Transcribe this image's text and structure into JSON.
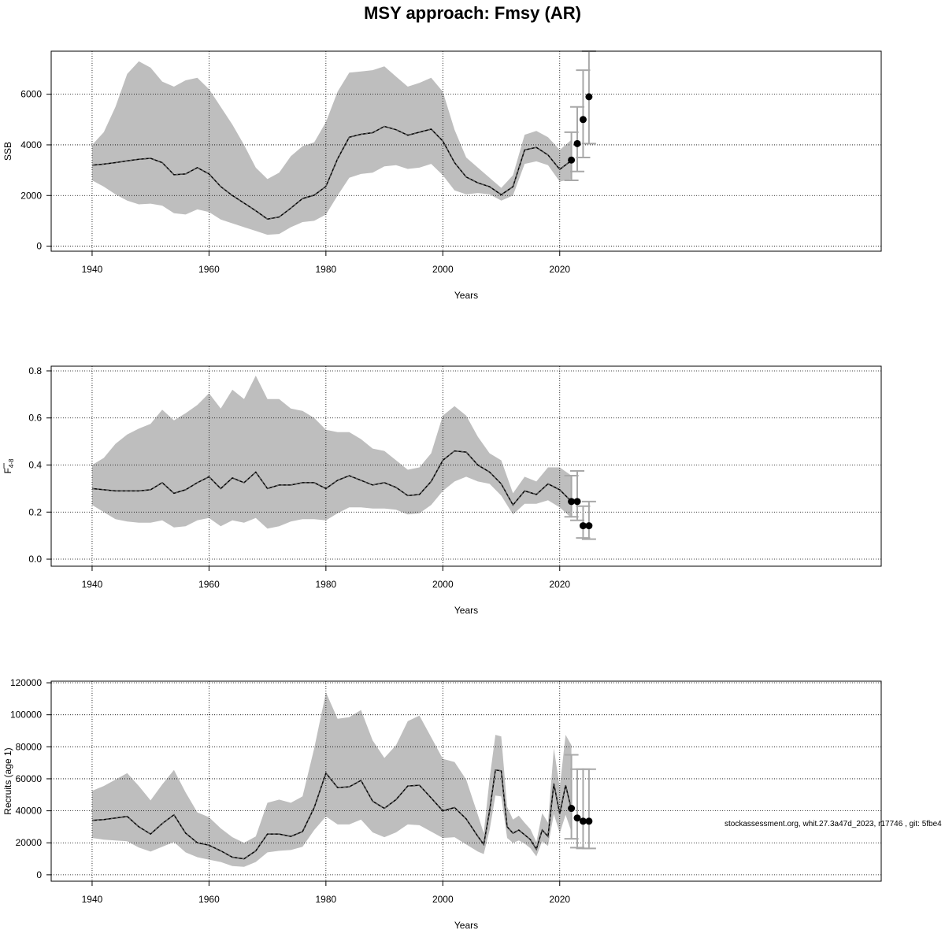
{
  "title": "MSY approach: Fmsy (AR)",
  "footer_text": "stockassessment.org, whit.27.3a47d_2023, r17746 , git: 5fbe4",
  "colors": {
    "band": "#bebebe",
    "line": "#000000",
    "errorbar": "#a8a8a8",
    "grid": "#000000"
  },
  "chart_data": [
    {
      "type": "line",
      "id": "ssb",
      "xlabel": "Years",
      "ylabel": "SSB",
      "xlim": [
        1933,
        2075
      ],
      "ylim": [
        -200,
        7700
      ],
      "xticks": [
        1940,
        1960,
        1980,
        2000,
        2020
      ],
      "yticks": [
        0,
        2000,
        4000,
        6000
      ],
      "ytick_labels": [
        "0",
        "2000",
        "4000",
        "6000"
      ],
      "grid": true,
      "years": [
        1940,
        1942,
        1944,
        1946,
        1948,
        1950,
        1952,
        1954,
        1956,
        1958,
        1960,
        1962,
        1964,
        1966,
        1968,
        1970,
        1972,
        1974,
        1976,
        1978,
        1980,
        1982,
        1984,
        1986,
        1988,
        1990,
        1992,
        1994,
        1996,
        1998,
        2000,
        2002,
        2004,
        2006,
        2008,
        2010,
        2012,
        2014,
        2016,
        2018,
        2020,
        2022
      ],
      "estimate": [
        3200,
        3240,
        3300,
        3370,
        3430,
        3470,
        3300,
        2820,
        2850,
        3100,
        2850,
        2350,
        2000,
        1700,
        1400,
        1070,
        1150,
        1500,
        1880,
        2010,
        2360,
        3450,
        4300,
        4420,
        4480,
        4730,
        4600,
        4380,
        4500,
        4620,
        4150,
        3300,
        2730,
        2500,
        2350,
        2030,
        2350,
        3800,
        3900,
        3600,
        3030,
        3380
      ],
      "lower": [
        2600,
        2350,
        2050,
        1800,
        1650,
        1680,
        1600,
        1300,
        1250,
        1450,
        1350,
        1050,
        900,
        750,
        600,
        450,
        480,
        750,
        950,
        1000,
        1250,
        2000,
        2700,
        2850,
        2900,
        3150,
        3200,
        3050,
        3100,
        3250,
        2800,
        2200,
        2050,
        2100,
        2050,
        1800,
        2000,
        3250,
        3350,
        3200,
        2550,
        2650
      ],
      "upper": [
        4000,
        4500,
        5500,
        6800,
        7300,
        7050,
        6500,
        6300,
        6550,
        6650,
        6200,
        5500,
        4800,
        4000,
        3100,
        2650,
        2900,
        3550,
        3950,
        4100,
        4900,
        6100,
        6850,
        6900,
        6950,
        7100,
        6700,
        6300,
        6450,
        6650,
        6100,
        4600,
        3500,
        3100,
        2700,
        2300,
        2800,
        4400,
        4550,
        4300,
        3800,
        4200
      ],
      "forecast": [
        {
          "year": 2022,
          "value": 3400,
          "lower": 2600,
          "upper": 4500
        },
        {
          "year": 2023,
          "value": 4050,
          "lower": 2950,
          "upper": 5500
        },
        {
          "year": 2024,
          "value": 5000,
          "lower": 3500,
          "upper": 6950
        },
        {
          "year": 2025,
          "value": 5900,
          "lower": 4050,
          "upper": 7700
        }
      ]
    },
    {
      "type": "line",
      "id": "fbar",
      "xlabel": "Years",
      "ylabel": "F",
      "ylabel_sub": "4-8",
      "xlim": [
        1933,
        2075
      ],
      "ylim": [
        -0.03,
        0.82
      ],
      "xticks": [
        1940,
        1960,
        1980,
        2000,
        2020
      ],
      "yticks": [
        0,
        0.2,
        0.4,
        0.6,
        0.8
      ],
      "ytick_labels": [
        "0.0",
        "0.2",
        "0.4",
        "0.6",
        "0.8"
      ],
      "grid": true,
      "years": [
        1940,
        1942,
        1944,
        1946,
        1948,
        1950,
        1952,
        1954,
        1956,
        1958,
        1960,
        1962,
        1964,
        1966,
        1968,
        1970,
        1972,
        1974,
        1976,
        1978,
        1980,
        1982,
        1984,
        1986,
        1988,
        1990,
        1992,
        1994,
        1996,
        1998,
        2000,
        2002,
        2004,
        2006,
        2008,
        2010,
        2012,
        2014,
        2016,
        2018,
        2020,
        2022
      ],
      "estimate": [
        0.3,
        0.295,
        0.29,
        0.29,
        0.29,
        0.295,
        0.325,
        0.28,
        0.295,
        0.325,
        0.35,
        0.3,
        0.345,
        0.325,
        0.37,
        0.3,
        0.315,
        0.315,
        0.325,
        0.325,
        0.3,
        0.335,
        0.355,
        0.335,
        0.315,
        0.325,
        0.305,
        0.27,
        0.275,
        0.33,
        0.42,
        0.46,
        0.455,
        0.4,
        0.37,
        0.32,
        0.23,
        0.29,
        0.275,
        0.32,
        0.295,
        0.245
      ],
      "lower": [
        0.23,
        0.2,
        0.17,
        0.16,
        0.155,
        0.155,
        0.165,
        0.135,
        0.14,
        0.165,
        0.175,
        0.14,
        0.165,
        0.155,
        0.175,
        0.13,
        0.14,
        0.16,
        0.17,
        0.17,
        0.165,
        0.195,
        0.22,
        0.22,
        0.215,
        0.215,
        0.21,
        0.19,
        0.195,
        0.23,
        0.29,
        0.33,
        0.35,
        0.33,
        0.32,
        0.27,
        0.19,
        0.235,
        0.235,
        0.25,
        0.22,
        0.175
      ],
      "upper": [
        0.4,
        0.43,
        0.49,
        0.53,
        0.555,
        0.575,
        0.635,
        0.59,
        0.62,
        0.655,
        0.705,
        0.64,
        0.72,
        0.68,
        0.78,
        0.68,
        0.68,
        0.64,
        0.63,
        0.6,
        0.55,
        0.54,
        0.54,
        0.51,
        0.47,
        0.46,
        0.42,
        0.38,
        0.39,
        0.45,
        0.61,
        0.65,
        0.61,
        0.52,
        0.45,
        0.42,
        0.28,
        0.35,
        0.33,
        0.39,
        0.39,
        0.355
      ],
      "forecast": [
        {
          "year": 2022,
          "value": 0.245,
          "lower": 0.18,
          "upper": 0.355
        },
        {
          "year": 2023,
          "value": 0.245,
          "lower": 0.165,
          "upper": 0.375
        },
        {
          "year": 2024,
          "value": 0.142,
          "lower": 0.09,
          "upper": 0.225
        },
        {
          "year": 2025,
          "value": 0.142,
          "lower": 0.085,
          "upper": 0.245
        }
      ]
    },
    {
      "type": "line",
      "id": "recruits",
      "xlabel": "Years",
      "ylabel": "Recruits (age 1)",
      "xlim": [
        1933,
        2075
      ],
      "ylim": [
        -4000,
        121000
      ],
      "xticks": [
        1940,
        1960,
        1980,
        2000,
        2020
      ],
      "yticks": [
        0,
        20000,
        40000,
        60000,
        80000,
        100000,
        120000
      ],
      "ytick_labels": [
        "0",
        "20000",
        "40000",
        "60000",
        "80000",
        "100000",
        "120000"
      ],
      "grid": true,
      "years": [
        1940,
        1942,
        1944,
        1946,
        1948,
        1950,
        1952,
        1954,
        1956,
        1958,
        1960,
        1962,
        1964,
        1966,
        1968,
        1970,
        1972,
        1974,
        1976,
        1978,
        1980,
        1982,
        1984,
        1986,
        1988,
        1990,
        1992,
        1994,
        1996,
        1998,
        2000,
        2002,
        2004,
        2006,
        2007,
        2008,
        2009,
        2010,
        2011,
        2012,
        2013,
        2014,
        2015,
        2016,
        2017,
        2018,
        2019,
        2020,
        2021,
        2022
      ],
      "estimate": [
        34000,
        34500,
        35500,
        36500,
        30000,
        25500,
        32000,
        37500,
        26000,
        20000,
        18500,
        15000,
        11000,
        10000,
        15000,
        25500,
        25500,
        24000,
        27000,
        42000,
        63500,
        54500,
        55000,
        59000,
        46000,
        41500,
        47000,
        55500,
        56000,
        48000,
        40000,
        42000,
        35000,
        24000,
        19000,
        40000,
        65500,
        65000,
        30000,
        26000,
        28000,
        25000,
        22000,
        16000,
        28000,
        24000,
        57000,
        38000,
        56000,
        41000
      ],
      "lower": [
        23000,
        22000,
        21500,
        21000,
        17000,
        14500,
        17500,
        20500,
        14000,
        11000,
        9500,
        8000,
        5500,
        5000,
        8000,
        14000,
        15000,
        15500,
        17500,
        28000,
        36500,
        31500,
        31500,
        34500,
        26500,
        23500,
        26500,
        31500,
        31000,
        27000,
        23000,
        23500,
        19000,
        14500,
        13000,
        28000,
        49500,
        49000,
        23000,
        20000,
        21500,
        19500,
        16500,
        11500,
        21000,
        18000,
        38000,
        26000,
        37500,
        27000
      ],
      "upper": [
        52500,
        55500,
        59500,
        63500,
        55500,
        46500,
        56500,
        65500,
        51500,
        39000,
        36000,
        29000,
        23500,
        20000,
        24000,
        45000,
        47000,
        45000,
        49000,
        79000,
        114000,
        97500,
        98500,
        103000,
        84000,
        73000,
        81000,
        96000,
        99500,
        86000,
        72500,
        70500,
        59500,
        37500,
        26000,
        60000,
        87500,
        86500,
        42500,
        34500,
        37000,
        32500,
        28500,
        20500,
        38500,
        32500,
        79000,
        54500,
        87500,
        81000
      ],
      "forecast": [
        {
          "year": 2022,
          "value": 41500,
          "lower": 22500,
          "upper": 75000
        },
        {
          "year": 2023,
          "value": 35500,
          "lower": 17000,
          "upper": 66000
        },
        {
          "year": 2024,
          "value": 33500,
          "lower": 16500,
          "upper": 66000
        },
        {
          "year": 2025,
          "value": 33500,
          "lower": 16500,
          "upper": 66000
        }
      ]
    }
  ]
}
